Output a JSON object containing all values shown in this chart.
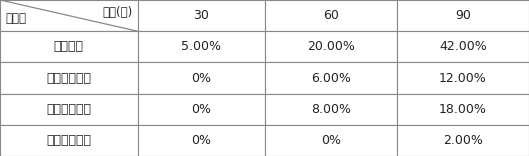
{
  "header_row": [
    "30",
    "60",
    "90"
  ],
  "header_col_label1": "时间(天)",
  "header_col_label2": "处理组",
  "rows": [
    [
      "未经处理",
      "5.00%",
      "20.00%",
      "42.00%"
    ],
    [
      "防治剂１处理",
      "0%",
      "6.00%",
      "12.00%"
    ],
    [
      "防治剂２处理",
      "0%",
      "8.00%",
      "18.00%"
    ],
    [
      "实施例３处理",
      "0%",
      "0%",
      "2.00%"
    ]
  ],
  "col_bounds": [
    0.0,
    0.26,
    0.5,
    0.75,
    1.0
  ],
  "n_data_rows": 4,
  "border_color": "#888888",
  "text_color": "#222222",
  "font_size": 9,
  "fig_width": 5.29,
  "fig_height": 1.56,
  "dpi": 100
}
